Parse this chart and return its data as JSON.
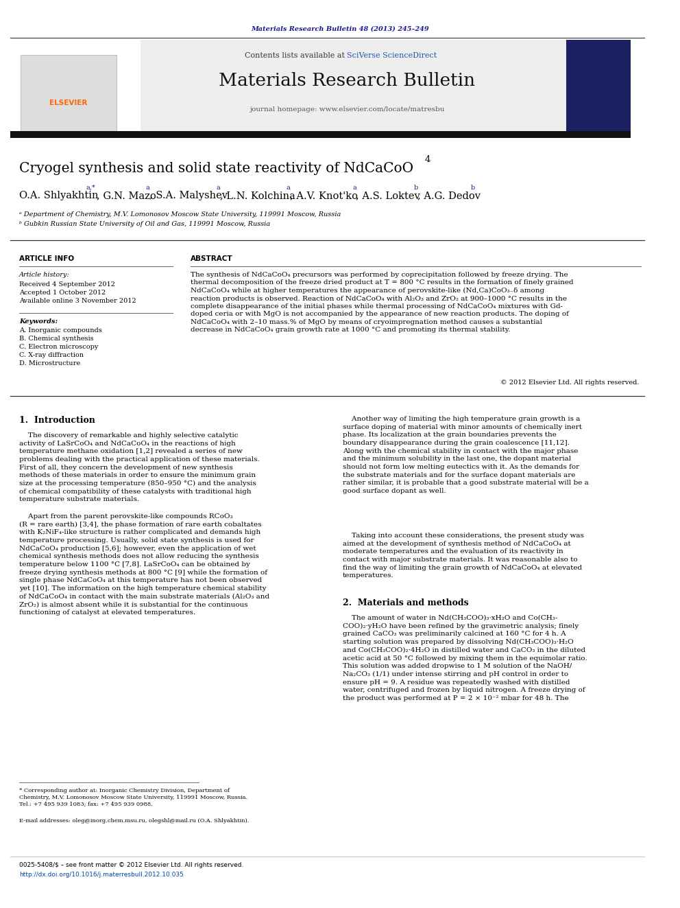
{
  "page_width": 9.92,
  "page_height": 13.23,
  "bg_color": "#ffffff",
  "journal_ref_text": "Materials Research Bulletin 48 (2013) 245–249",
  "journal_ref_color": "#1a1a8c",
  "header_bg": "#eeeeee",
  "contents_text": "Contents lists available at ",
  "sciverse_text": "SciVerse ScienceDirect",
  "sciverse_color": "#2255aa",
  "journal_title": "Materials Research Bulletin",
  "homepage_text": "journal homepage: www.elsevier.com/locate/matresbu",
  "title_bar_color": "#111111",
  "paper_title": "Cryogel synthesis and solid state reactivity of NdCaCoO",
  "paper_title_sub": "4",
  "affil_a": "ᵃ Department of Chemistry, M.V. Lomonosov Moscow State University, 119991 Moscow, Russia",
  "affil_b": "ᵇ Gubkin Russian State University of Oil and Gas, 119991 Moscow, Russia",
  "article_info_label": "ARTICLE INFO",
  "abstract_label": "ABSTRACT",
  "article_history_label": "Article history:",
  "received_text": "Received 4 September 2012",
  "accepted_text": "Accepted 1 October 2012",
  "available_text": "Available online 3 November 2012",
  "keywords_label": "Keywords:",
  "keyword_a": "A. Inorganic compounds",
  "keyword_b": "B. Chemical synthesis",
  "keyword_c": "C. Electron microscopy",
  "keyword_d": "C. X-ray diffraction",
  "keyword_e": "D. Microstructure",
  "abstract_text": "The synthesis of NdCaCoO₄ precursors was performed by coprecipitation followed by freeze drying. The\nthermal decomposition of the freeze dried product at T = 800 °C results in the formation of finely grained\nNdCaCoO₄ while at higher temperatures the appearance of perovskite-like (Nd,Ca)CoO₃₋δ among\nreaction products is observed. Reaction of NdCaCoO₄ with Al₂O₃ and ZrO₂ at 900–1000 °C results in the\ncomplete disappearance of the initial phases while thermal processing of NdCaCoO₄ mixtures with Gd-\ndoped ceria or with MgO is not accompanied by the appearance of new reaction products. The doping of\nNdCaCoO₄ with 2–10 mass.% of MgO by means of cryoimpregnation method causes a substantial\ndecrease in NdCaCoO₄ grain growth rate at 1000 °C and promoting its thermal stability.",
  "copyright_text": "© 2012 Elsevier Ltd. All rights reserved.",
  "section1_title": "1.  Introduction",
  "intro_col1_p1": "    The discovery of remarkable and highly selective catalytic\nactivity of LaSrCoO₄ and NdCaCoO₄ in the reactions of high\ntemperature methane oxidation [1,2] revealed a series of new\nproblems dealing with the practical application of these materials.\nFirst of all, they concern the development of new synthesis\nmethods of these materials in order to ensure the minimum grain\nsize at the processing temperature (850–950 °C) and the analysis\nof chemical compatibility of these catalysts with traditional high\ntemperature substrate materials.",
  "intro_col1_p2": "    Apart from the parent perovskite-like compounds RCoO₃\n(R = rare earth) [3,4], the phase formation of rare earth cobaltates\nwith K₂NiF₄-like structure is rather complicated and demands high\ntemperature processing. Usually, solid state synthesis is used for\nNdCaCoO₄ production [5,6]; however, even the application of wet\nchemical synthesis methods does not allow reducing the synthesis\ntemperature below 1100 °C [7,8]. LaSrCoO₄ can be obtained by\nfreeze drying synthesis methods at 800 °C [9] while the formation of\nsingle phase NdCaCoO₄ at this temperature has not been observed\nyet [10]. The information on the high temperature chemical stability\nof NdCaCoO₄ in contact with the main substrate materials (Al₂O₃ and\nZrO₂) is almost absent while it is substantial for the continuous\nfunctioning of catalyst at elevated temperatures.",
  "intro_col2_p1": "    Another way of limiting the high temperature grain growth is a\nsurface doping of material with minor amounts of chemically inert\nphase. Its localization at the grain boundaries prevents the\nboundary disappearance during the grain coalescence [11,12].\nAlong with the chemical stability in contact with the major phase\nand the minimum solubility in the last one, the dopant material\nshould not form low melting eutectics with it. As the demands for\nthe substrate materials and for the surface dopant materials are\nrather similar, it is probable that a good substrate material will be a\ngood surface dopant as well.",
  "intro_col2_p2": "    Taking into account these considerations, the present study was\naimed at the development of synthesis method of NdCaCoO₄ at\nmoderate temperatures and the evaluation of its reactivity in\ncontact with major substrate materials. It was reasonable also to\nfind the way of limiting the grain growth of NdCaCoO₄ at elevated\ntemperatures.",
  "section2_title": "2.  Materials and methods",
  "methods_col2_p1": "    The amount of water in Nd(CH₃COO)₃·xH₂O and Co(CH₃-\nCOO)₂·yH₂O have been refined by the gravimetric analysis; finely\ngrained CaCO₃ was preliminarily calcined at 160 °C for 4 h. A\nstarting solution was prepared by dissolving Nd(CH₃COO)₃·H₂O\nand Co(CH₃COO)₂·4H₂O in distilled water and CaCO₃ in the diluted\nacetic acid at 50 °C followed by mixing them in the equimolar ratio.\nThis solution was added dropwise to 1 M solution of the NaOH/\nNa₂CO₃ (1/1) under intense stirring and pH control in order to\nensure pH = 9. A residue was repeatedly washed with distilled\nwater, centrifuged and frozen by liquid nitrogen. A freeze drying of\nthe product was performed at P = 2 × 10⁻² mbar for 48 h. The",
  "footer_text1": "0025-5408/$ – see front matter © 2012 Elsevier Ltd. All rights reserved.",
  "footer_text2": "http://dx.doi.org/10.1016/j.materresbull.2012.10.035",
  "footnote_star": "* Corresponding author at: Inorganic Chemistry Division, Department of\nChemistry, M.V. Lomonosov Moscow State University, 119991 Moscow, Russia.\nTel.: +7 495 939 1083; fax: +7 495 939 0988.",
  "footnote_email": "E-mail addresses: oleg@inorg.chem.msu.ru, olegshl@mail.ru (O.A. Shlyakhtin)."
}
